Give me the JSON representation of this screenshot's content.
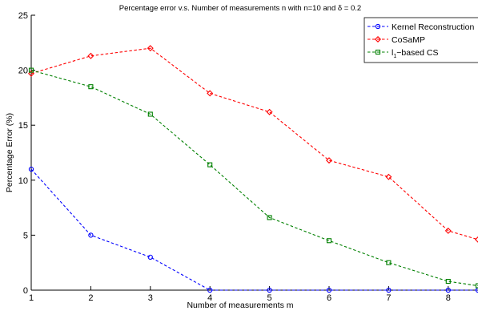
{
  "chart_data": {
    "type": "line",
    "title_parts": {
      "prefix": "Percentage error v.s. Number of measurements n with n=10 and ",
      "delta": "δ",
      "suffix": " = 0.2"
    },
    "xlabel": "Number of measurements m",
    "ylabel": "Percentage Error (%)",
    "xlim": [
      1,
      8.5
    ],
    "ylim": [
      0,
      25
    ],
    "xticks": [
      1,
      2,
      3,
      4,
      5,
      6,
      7,
      8
    ],
    "yticks": [
      0,
      5,
      10,
      15,
      20,
      25
    ],
    "grid": false,
    "legend_position": "top-right",
    "x": [
      1,
      2,
      3,
      4,
      5,
      6,
      7,
      8,
      8.5
    ],
    "series": [
      {
        "name": "Kernel Reconstruction",
        "color": "#0000ff",
        "marker": "circle",
        "values": [
          11.0,
          5.0,
          3.0,
          0.0,
          0.0,
          0.0,
          0.0,
          0.0,
          0.0
        ]
      },
      {
        "name": "CoSaMP",
        "color": "#ff0000",
        "marker": "diamond",
        "values": [
          19.7,
          21.3,
          22.0,
          17.9,
          16.2,
          11.8,
          10.3,
          5.4,
          4.6
        ]
      },
      {
        "name_parts": {
          "prefix": "l",
          "sub": "1",
          "suffix": "−based CS"
        },
        "color": "#008000",
        "marker": "square",
        "values": [
          20.0,
          18.5,
          16.0,
          11.4,
          6.6,
          4.5,
          2.5,
          0.8,
          0.4
        ]
      }
    ]
  }
}
